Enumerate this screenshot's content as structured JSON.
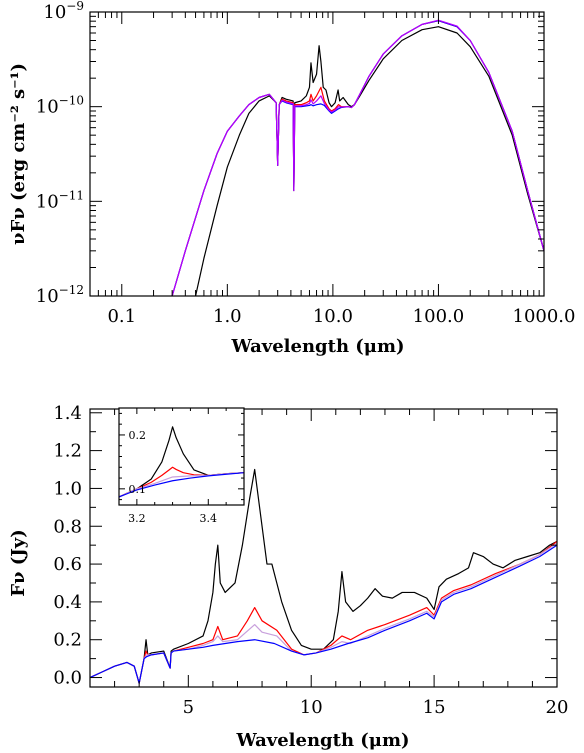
{
  "chart_data": [
    {
      "type": "line",
      "panel": "top",
      "xscale": "log",
      "yscale": "log",
      "xlim": [
        0.05,
        1000
      ],
      "ylim": [
        1e-12,
        1e-09
      ],
      "xlabel": "Wavelength (μm)",
      "ylabel": "νFν (erg cm⁻² s⁻¹)",
      "xtick_values": [
        0.1,
        1,
        10,
        100,
        1000
      ],
      "xtick_labels": [
        "0.1",
        "1.0",
        "10.0",
        "100.0",
        "1000.0"
      ],
      "ytick_values": [
        1e-12,
        1e-11,
        1e-10,
        1e-09
      ],
      "ytick_labels": [
        {
          "base": "10",
          "exp": "−12"
        },
        {
          "base": "10",
          "exp": "−11"
        },
        {
          "base": "10",
          "exp": "−10"
        },
        {
          "base": "10",
          "exp": "−9"
        }
      ],
      "series": [
        {
          "color": "#000000",
          "x": [
            0.5,
            0.6,
            0.8,
            1.0,
            1.3,
            1.6,
            2.0,
            2.5,
            2.9,
            3.0,
            3.1,
            3.3,
            3.6,
            4.2,
            4.27,
            4.35,
            5.0,
            5.6,
            6.0,
            6.2,
            6.5,
            7.0,
            7.4,
            7.7,
            8.1,
            8.6,
            9.2,
            9.7,
            10.5,
            11.2,
            11.6,
            12.5,
            14,
            15,
            16,
            18,
            22,
            30,
            45,
            70,
            100,
            150,
            200,
            300,
            500,
            700,
            1000
          ],
          "y": [
            1e-12,
            2.5e-12,
            9e-12,
            2.3e-11,
            5e-11,
            8.5e-11,
            1.15e-10,
            1.3e-10,
            1.1e-10,
            2.4e-11,
            1.05e-10,
            1.25e-10,
            1.2e-10,
            1.15e-10,
            1.3e-11,
            1.1e-10,
            1.15e-10,
            1.3e-10,
            1.6e-10,
            2.9e-10,
            1.8e-10,
            2.2e-10,
            4.4e-10,
            3e-10,
            1.6e-10,
            1.5e-10,
            1.1e-10,
            1e-10,
            1.1e-10,
            1.5e-10,
            1.15e-10,
            1.25e-10,
            1.05e-10,
            1e-10,
            1.05e-10,
            1.3e-10,
            1.9e-10,
            3.2e-10,
            5e-10,
            6.5e-10,
            7e-10,
            6e-10,
            4.3e-10,
            2.1e-10,
            5e-11,
            1.2e-11,
            3e-12
          ]
        },
        {
          "color": "#ff0000",
          "x": [
            0.3,
            0.4,
            0.6,
            0.8,
            1.0,
            1.3,
            1.6,
            2.0,
            2.5,
            2.9,
            3.0,
            3.1,
            3.3,
            3.6,
            4.2,
            4.27,
            4.35,
            5.0,
            5.6,
            6.0,
            6.2,
            6.5,
            7.0,
            7.7,
            8.3,
            9.2,
            9.7,
            10.5,
            11.3,
            12,
            14,
            15,
            16,
            18,
            22,
            30,
            45,
            70,
            100,
            150,
            200,
            300,
            500,
            700,
            1000
          ],
          "y": [
            1e-12,
            3e-12,
            1.3e-11,
            3.2e-11,
            5.5e-11,
            8e-11,
            1.05e-10,
            1.25e-10,
            1.35e-10,
            1.1e-10,
            2.4e-11,
            1.05e-10,
            1.2e-10,
            1.15e-10,
            1.1e-10,
            1.3e-11,
            1.05e-10,
            1.05e-10,
            1.1e-10,
            1.15e-10,
            1.35e-10,
            1.15e-10,
            1.3e-10,
            1.6e-10,
            1.15e-10,
            9.5e-11,
            9e-11,
            9.5e-11,
            1.05e-10,
            1e-10,
            1e-10,
            9.8e-11,
            1.05e-10,
            1.35e-10,
            2.1e-10,
            3.6e-10,
            5.6e-10,
            7.4e-10,
            8.1e-10,
            7e-10,
            5e-10,
            2.3e-10,
            5.5e-11,
            1.3e-11,
            3e-12
          ]
        },
        {
          "color": "#0000ff",
          "x": [
            0.3,
            0.4,
            0.6,
            0.8,
            1.0,
            1.3,
            1.6,
            2.0,
            2.5,
            2.9,
            3.0,
            3.1,
            3.3,
            3.6,
            4.2,
            4.27,
            4.35,
            5.0,
            5.6,
            6.0,
            6.2,
            6.5,
            7.0,
            7.7,
            8.3,
            9.2,
            9.7,
            10.5,
            11.3,
            12,
            14,
            15,
            16,
            18,
            22,
            30,
            45,
            70,
            100,
            150,
            200,
            300,
            500,
            700,
            1000
          ],
          "y": [
            1e-12,
            3e-12,
            1.3e-11,
            3.2e-11,
            5.5e-11,
            8e-11,
            1.05e-10,
            1.25e-10,
            1.35e-10,
            1.1e-10,
            2.4e-11,
            1.05e-10,
            1.15e-10,
            1.1e-10,
            1.05e-10,
            1.3e-11,
            1e-10,
            1e-10,
            1.02e-10,
            1.03e-10,
            1.05e-10,
            1.02e-10,
            1.05e-10,
            1.07e-10,
            1.03e-10,
            9e-11,
            8.5e-11,
            9e-11,
            9.5e-11,
            9.8e-11,
            1e-10,
            9.8e-11,
            1.05e-10,
            1.35e-10,
            2.1e-10,
            3.6e-10,
            5.6e-10,
            7.4e-10,
            8.1e-10,
            7e-10,
            5e-10,
            2.3e-10,
            5.5e-11,
            1.3e-11,
            3e-12
          ]
        },
        {
          "color": "#b400ff",
          "x": [
            0.3,
            0.4,
            0.6,
            0.8,
            1.0,
            1.3,
            1.6,
            2.0,
            2.5,
            2.9,
            3.0,
            3.1,
            3.3,
            3.6,
            4.2,
            4.27,
            4.35,
            5.0,
            5.6,
            6.0,
            6.2,
            6.5,
            7.0,
            7.7,
            8.3,
            9.2,
            9.7,
            10.5,
            11.3,
            12,
            14,
            15,
            16,
            18,
            22,
            30,
            45,
            70,
            100,
            150,
            200,
            300,
            500,
            700,
            1000
          ],
          "y": [
            1e-12,
            3e-12,
            1.3e-11,
            3.2e-11,
            5.5e-11,
            8e-11,
            1.05e-10,
            1.25e-10,
            1.35e-10,
            1.1e-10,
            2.4e-11,
            1.05e-10,
            1.17e-10,
            1.12e-10,
            1.07e-10,
            1.3e-11,
            1.02e-10,
            1.02e-10,
            1.05e-10,
            1.08e-10,
            1.18e-10,
            1.07e-10,
            1.15e-10,
            1.3e-10,
            1.08e-10,
            9.2e-11,
            8.8e-11,
            9.2e-11,
            1e-10,
            9.9e-11,
            1e-10,
            9.8e-11,
            1.05e-10,
            1.35e-10,
            2.1e-10,
            3.6e-10,
            5.6e-10,
            7.4e-10,
            8.2e-10,
            7.1e-10,
            5e-10,
            2.3e-10,
            5.5e-11,
            1.3e-11,
            3e-12
          ]
        }
      ]
    },
    {
      "type": "line",
      "panel": "bottom",
      "xlim": [
        1,
        20
      ],
      "ylim": [
        -0.05,
        1.42
      ],
      "xlabel": "Wavelength (μm)",
      "ylabel": "Fν (Jy)",
      "xtick_values": [
        5,
        10,
        15,
        20
      ],
      "xtick_labels": [
        "5",
        "10",
        "15",
        "20"
      ],
      "ytick_values": [
        0.0,
        0.2,
        0.4,
        0.6,
        0.8,
        1.0,
        1.2,
        1.4
      ],
      "ytick_labels": [
        "0.0",
        "0.2",
        "0.4",
        "0.6",
        "0.8",
        "1.0",
        "1.2",
        "1.4"
      ],
      "series": [
        {
          "color": "#000000",
          "x": [
            1.0,
            1.5,
            2.0,
            2.5,
            2.8,
            3.0,
            3.2,
            3.28,
            3.35,
            3.5,
            4.0,
            4.26,
            4.3,
            4.4,
            5.0,
            5.6,
            5.8,
            6.0,
            6.1,
            6.2,
            6.3,
            6.5,
            6.9,
            7.2,
            7.5,
            7.7,
            7.9,
            8.2,
            8.4,
            8.6,
            8.8,
            9.2,
            9.6,
            10.0,
            10.5,
            10.9,
            11.1,
            11.25,
            11.4,
            11.7,
            12.0,
            12.3,
            12.6,
            12.9,
            13.3,
            13.7,
            14.2,
            14.7,
            15.0,
            15.2,
            15.5,
            16.0,
            16.4,
            16.6,
            17.0,
            17.4,
            17.8,
            18.3,
            18.8,
            19.3,
            19.7,
            20.0
          ],
          "y": [
            0.0,
            0.03,
            0.06,
            0.08,
            0.06,
            -0.03,
            0.1,
            0.2,
            0.12,
            0.13,
            0.14,
            0.05,
            0.14,
            0.15,
            0.18,
            0.22,
            0.3,
            0.45,
            0.6,
            0.7,
            0.5,
            0.45,
            0.5,
            0.7,
            0.95,
            1.1,
            0.9,
            0.6,
            0.6,
            0.5,
            0.4,
            0.25,
            0.17,
            0.15,
            0.15,
            0.2,
            0.35,
            0.56,
            0.4,
            0.35,
            0.38,
            0.42,
            0.47,
            0.43,
            0.42,
            0.45,
            0.45,
            0.42,
            0.36,
            0.48,
            0.52,
            0.55,
            0.58,
            0.66,
            0.64,
            0.6,
            0.58,
            0.62,
            0.64,
            0.66,
            0.7,
            0.72
          ]
        },
        {
          "color": "#ff0000",
          "x": [
            1.0,
            1.5,
            2.0,
            2.5,
            2.8,
            3.0,
            3.2,
            3.28,
            3.35,
            3.5,
            4.0,
            4.26,
            4.3,
            4.4,
            5.0,
            5.6,
            6.0,
            6.2,
            6.4,
            7.0,
            7.4,
            7.7,
            8.0,
            8.6,
            9.2,
            9.7,
            10.2,
            10.8,
            11.25,
            11.6,
            12.3,
            13.0,
            14.0,
            14.7,
            15.0,
            15.3,
            15.8,
            16.5,
            17.5,
            18.5,
            19.3,
            20.0
          ],
          "y": [
            0.0,
            0.03,
            0.06,
            0.08,
            0.06,
            -0.03,
            0.1,
            0.14,
            0.12,
            0.12,
            0.13,
            0.05,
            0.13,
            0.14,
            0.16,
            0.18,
            0.2,
            0.27,
            0.2,
            0.22,
            0.3,
            0.37,
            0.3,
            0.25,
            0.15,
            0.12,
            0.13,
            0.17,
            0.22,
            0.2,
            0.25,
            0.28,
            0.33,
            0.37,
            0.33,
            0.42,
            0.46,
            0.49,
            0.55,
            0.6,
            0.65,
            0.72
          ]
        },
        {
          "color": "#c8a0dc",
          "x": [
            1.0,
            1.5,
            2.0,
            2.5,
            2.8,
            3.0,
            3.2,
            3.3,
            3.5,
            4.0,
            4.26,
            4.3,
            4.4,
            5.0,
            5.6,
            6.0,
            6.2,
            6.4,
            7.0,
            7.7,
            8.0,
            8.6,
            9.2,
            9.7,
            10.2,
            10.8,
            11.25,
            11.6,
            12.3,
            13.0,
            14.0,
            14.7,
            15.0,
            15.3,
            15.8,
            16.5,
            17.5,
            18.5,
            19.3,
            20.0
          ],
          "y": [
            0.0,
            0.03,
            0.06,
            0.08,
            0.06,
            -0.03,
            0.1,
            0.12,
            0.12,
            0.13,
            0.05,
            0.13,
            0.14,
            0.15,
            0.17,
            0.19,
            0.22,
            0.19,
            0.2,
            0.28,
            0.24,
            0.22,
            0.14,
            0.12,
            0.13,
            0.16,
            0.19,
            0.18,
            0.22,
            0.26,
            0.31,
            0.35,
            0.32,
            0.41,
            0.45,
            0.48,
            0.54,
            0.6,
            0.65,
            0.71
          ]
        },
        {
          "color": "#0000ff",
          "x": [
            1.0,
            1.5,
            2.0,
            2.5,
            2.8,
            3.0,
            3.2,
            3.3,
            3.5,
            4.0,
            4.26,
            4.3,
            4.4,
            5.0,
            5.6,
            6.0,
            6.5,
            7.0,
            7.7,
            8.5,
            9.2,
            9.7,
            10.2,
            10.8,
            11.5,
            12.3,
            13.0,
            14.0,
            14.7,
            15.0,
            15.3,
            15.8,
            16.5,
            17.5,
            18.5,
            19.3,
            20.0
          ],
          "y": [
            0.0,
            0.03,
            0.06,
            0.08,
            0.06,
            -0.03,
            0.1,
            0.11,
            0.12,
            0.13,
            0.05,
            0.13,
            0.14,
            0.15,
            0.16,
            0.17,
            0.18,
            0.19,
            0.2,
            0.18,
            0.14,
            0.12,
            0.13,
            0.15,
            0.18,
            0.21,
            0.25,
            0.3,
            0.34,
            0.31,
            0.4,
            0.44,
            0.47,
            0.53,
            0.59,
            0.64,
            0.7
          ]
        }
      ],
      "inset": {
        "xlim": [
          3.15,
          3.5
        ],
        "ylim": [
          0.07,
          0.25
        ],
        "xtick_values": [
          3.2,
          3.4
        ],
        "xtick_labels": [
          "3.2",
          "3.4"
        ],
        "ytick_values": [
          0.1,
          0.2
        ],
        "ytick_labels": [
          "0.1",
          "0.2"
        ],
        "series": [
          {
            "color": "#000000",
            "x": [
              3.15,
              3.2,
              3.24,
              3.27,
              3.29,
              3.3,
              3.31,
              3.33,
              3.36,
              3.4,
              3.45,
              3.5
            ],
            "y": [
              0.085,
              0.1,
              0.118,
              0.15,
              0.19,
              0.215,
              0.195,
              0.165,
              0.135,
              0.125,
              0.128,
              0.13
            ]
          },
          {
            "color": "#ff0000",
            "x": [
              3.15,
              3.2,
              3.24,
              3.27,
              3.29,
              3.3,
              3.31,
              3.33,
              3.36,
              3.4,
              3.45,
              3.5
            ],
            "y": [
              0.085,
              0.1,
              0.112,
              0.125,
              0.135,
              0.14,
              0.136,
              0.13,
              0.126,
              0.125,
              0.128,
              0.13
            ]
          },
          {
            "color": "#c8a0dc",
            "x": [
              3.15,
              3.2,
              3.25,
              3.3,
              3.35,
              3.4,
              3.45,
              3.5
            ],
            "y": [
              0.085,
              0.1,
              0.11,
              0.122,
              0.124,
              0.125,
              0.128,
              0.13
            ]
          },
          {
            "color": "#0000ff",
            "x": [
              3.15,
              3.2,
              3.25,
              3.3,
              3.35,
              3.4,
              3.45,
              3.5
            ],
            "y": [
              0.085,
              0.098,
              0.107,
              0.115,
              0.12,
              0.124,
              0.127,
              0.13
            ]
          }
        ]
      }
    }
  ]
}
